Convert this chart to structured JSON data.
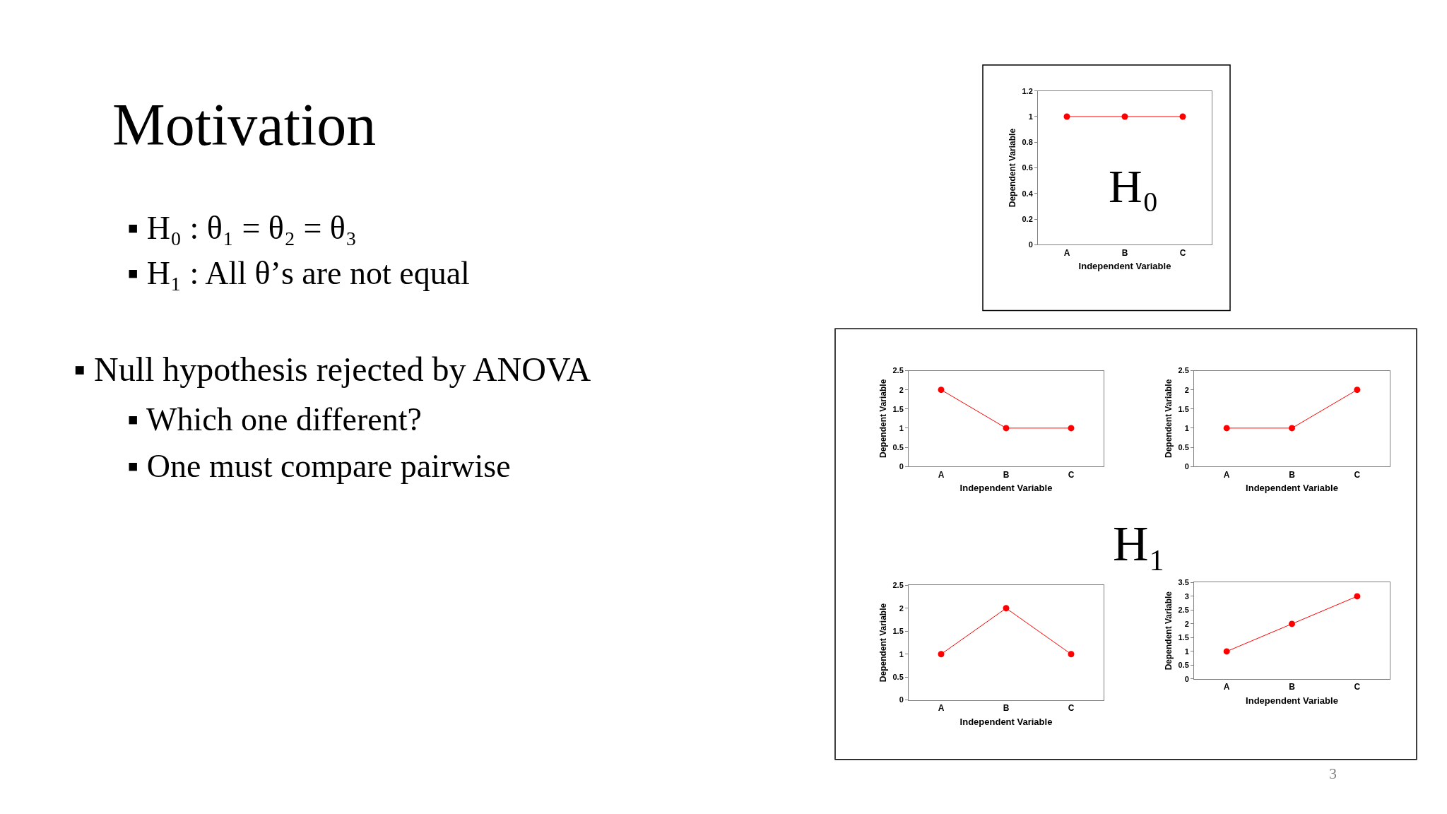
{
  "chart_data": [
    {
      "type": "other",
      "title": "Motivation",
      "annotations": [
        "▪ H₀ : θ₁ = θ₂ = θ₃",
        "▪ H₁ : All θ’s are not equal",
        "▪ Null hypothesis rejected by ANOVA",
        "▪ Which one different?",
        "▪ One must compare pairwise",
        "H₁",
        "3"
      ]
    },
    {
      "type": "line",
      "categories": [
        "A",
        "B",
        "C"
      ],
      "series": [
        {
          "color": "#ff0000",
          "values": [
            1,
            1,
            1
          ]
        }
      ],
      "ylim": [
        0,
        1.2
      ],
      "yticks": [
        0,
        0.2,
        0.4,
        0.6,
        0.8,
        1,
        1.2
      ],
      "xlabel": "Independent Variable",
      "ylabel": "Dependent Variable",
      "marker": "circle",
      "annotations": [
        "H₀"
      ]
    },
    {
      "type": "line",
      "categories": [
        "A",
        "B",
        "C"
      ],
      "series": [
        {
          "color": "#ff0000",
          "values": [
            2,
            1,
            1
          ]
        }
      ],
      "ylim": [
        0,
        2.5
      ],
      "yticks": [
        0,
        0.5,
        1,
        1.5,
        2,
        2.5
      ],
      "xlabel": "Independent Variable",
      "ylabel": "Dependent Variable",
      "marker": "circle"
    },
    {
      "type": "line",
      "categories": [
        "A",
        "B",
        "C"
      ],
      "series": [
        {
          "color": "#ff0000",
          "values": [
            1,
            1,
            2
          ]
        }
      ],
      "ylim": [
        0,
        2.5
      ],
      "yticks": [
        0,
        0.5,
        1,
        1.5,
        2,
        2.5
      ],
      "xlabel": "Independent Variable",
      "ylabel": "Dependent Variable",
      "marker": "circle"
    },
    {
      "type": "line",
      "categories": [
        "A",
        "B",
        "C"
      ],
      "series": [
        {
          "color": "#ff0000",
          "values": [
            1,
            2,
            1
          ]
        }
      ],
      "ylim": [
        0,
        2.5
      ],
      "yticks": [
        0,
        0.5,
        1,
        1.5,
        2,
        2.5
      ],
      "xlabel": "Independent Variable",
      "ylabel": "Dependent Variable",
      "marker": "circle"
    },
    {
      "type": "line",
      "categories": [
        "A",
        "B",
        "C"
      ],
      "series": [
        {
          "color": "#ff0000",
          "values": [
            1,
            2,
            3
          ]
        }
      ],
      "ylim": [
        0,
        3.5
      ],
      "yticks": [
        0,
        0.5,
        1,
        1.5,
        2,
        2.5,
        3,
        3.5
      ],
      "xlabel": "Independent Variable",
      "ylabel": "Dependent Variable",
      "marker": "circle"
    }
  ]
}
